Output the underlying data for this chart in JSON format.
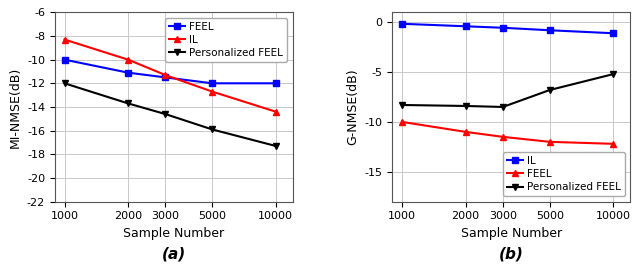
{
  "x": [
    1000,
    2000,
    3000,
    5000,
    10000
  ],
  "plot_a": {
    "title": "(a)",
    "ylabel": "MI-NMSE(dB)",
    "xlabel": "Sample Number",
    "ylim": [
      -22,
      -6
    ],
    "yticks": [
      -22,
      -20,
      -18,
      -16,
      -14,
      -12,
      -10,
      -8,
      -6
    ],
    "xlim": [
      900,
      12000
    ],
    "series": [
      {
        "label": "FEEL",
        "color": "#0000FF",
        "marker": "s",
        "values": [
          -10.0,
          -11.1,
          -11.5,
          -12.0,
          -12.0
        ]
      },
      {
        "label": "IL",
        "color": "#FF0000",
        "marker": "^",
        "values": [
          -8.3,
          -10.0,
          -11.3,
          -12.7,
          -14.4
        ]
      },
      {
        "label": "Personalized FEEL",
        "color": "#000000",
        "marker": "v",
        "values": [
          -12.0,
          -13.7,
          -14.6,
          -15.9,
          -17.3
        ]
      }
    ]
  },
  "plot_b": {
    "title": "(b)",
    "ylabel": "G-NMSE(dB)",
    "xlabel": "Sample Number",
    "ylim": [
      -18,
      1
    ],
    "yticks": [
      -15,
      -10,
      -5,
      0
    ],
    "xlim": [
      900,
      12000
    ],
    "series": [
      {
        "label": "IL",
        "color": "#0000FF",
        "marker": "s",
        "values": [
          -0.15,
          -0.4,
          -0.55,
          -0.8,
          -1.1
        ]
      },
      {
        "label": "FEEL",
        "color": "#FF0000",
        "marker": "^",
        "values": [
          -10.0,
          -11.0,
          -11.5,
          -12.0,
          -12.2
        ]
      },
      {
        "label": "Personalized FEEL",
        "color": "#000000",
        "marker": "v",
        "values": [
          -8.3,
          -8.4,
          -8.5,
          -6.8,
          -5.2
        ]
      }
    ]
  },
  "bg_color": "#ffffff",
  "grid_color": "#c0c0c0",
  "label_fontsize": 9,
  "tick_fontsize": 8,
  "legend_fontsize": 7.5,
  "linewidth": 1.5,
  "markersize": 5,
  "caption_fontsize": 11
}
